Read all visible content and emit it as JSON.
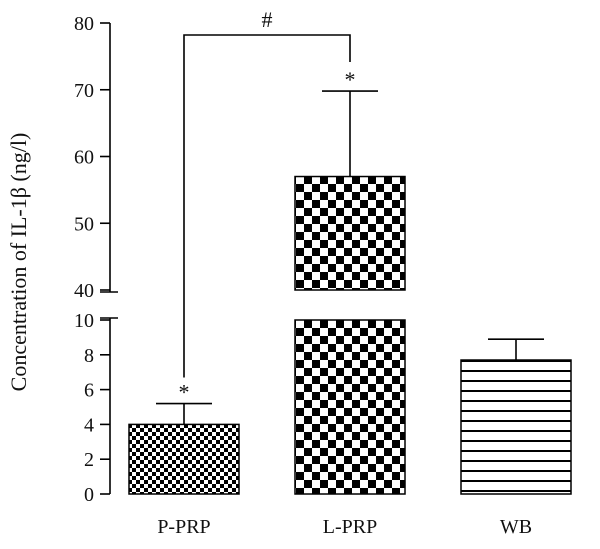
{
  "chart_data": {
    "type": "bar",
    "ylabel": "Concentration of IL-1β (ng/l)",
    "categories": [
      "P-PRP",
      "L-PRP",
      "WB"
    ],
    "values": [
      4.0,
      57.0,
      7.7
    ],
    "errors": [
      1.2,
      12.8,
      1.2
    ],
    "patterns": [
      "fine-checker",
      "coarse-checker",
      "horizontal-lines"
    ],
    "axis_break": {
      "lower": [
        0,
        10
      ],
      "upper": [
        40,
        80
      ]
    },
    "lower_ticks": [
      "0",
      "2",
      "4",
      "6",
      "8",
      "10"
    ],
    "upper_ticks": [
      "40",
      "50",
      "60",
      "70",
      "80"
    ],
    "annotations": [
      {
        "category": "P-PRP",
        "text": "*"
      },
      {
        "category": "L-PRP",
        "text": "*"
      }
    ],
    "bracket": {
      "from": "P-PRP",
      "to": "L-PRP",
      "text": "#"
    }
  }
}
